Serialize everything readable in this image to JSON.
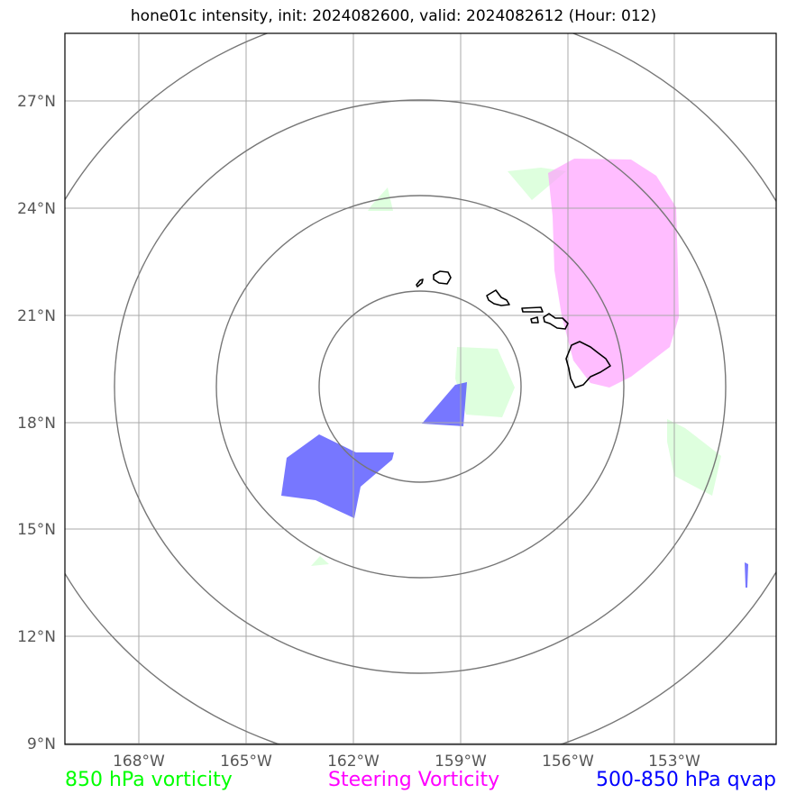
{
  "title": "hone01c intensity, init: 2024082600, valid: 2024082612 (Hour: 012)",
  "map": {
    "lat_ticks": [
      "27°N",
      "24°N",
      "21°N",
      "18°N",
      "15°N",
      "12°N",
      "9°N"
    ],
    "lon_ticks": [
      "168°W",
      "165°W",
      "162°W",
      "159°W",
      "156°W",
      "153°W"
    ],
    "features": {
      "range_rings": "range-rings",
      "coastline": "hawaiian-islands",
      "vorticity_850": "850 hPa vorticity areas",
      "steering_vorticity": "steering vorticity area",
      "qvap": "500-850 hPa qvap areas"
    }
  },
  "legend": {
    "green": {
      "label": "850 hPa vorticity",
      "color": "#00ff00"
    },
    "magenta": {
      "label": "Steering Vorticity",
      "color": "#ff00ff"
    },
    "blue": {
      "label": "500-850 hPa qvap",
      "color": "#0000ff"
    }
  }
}
